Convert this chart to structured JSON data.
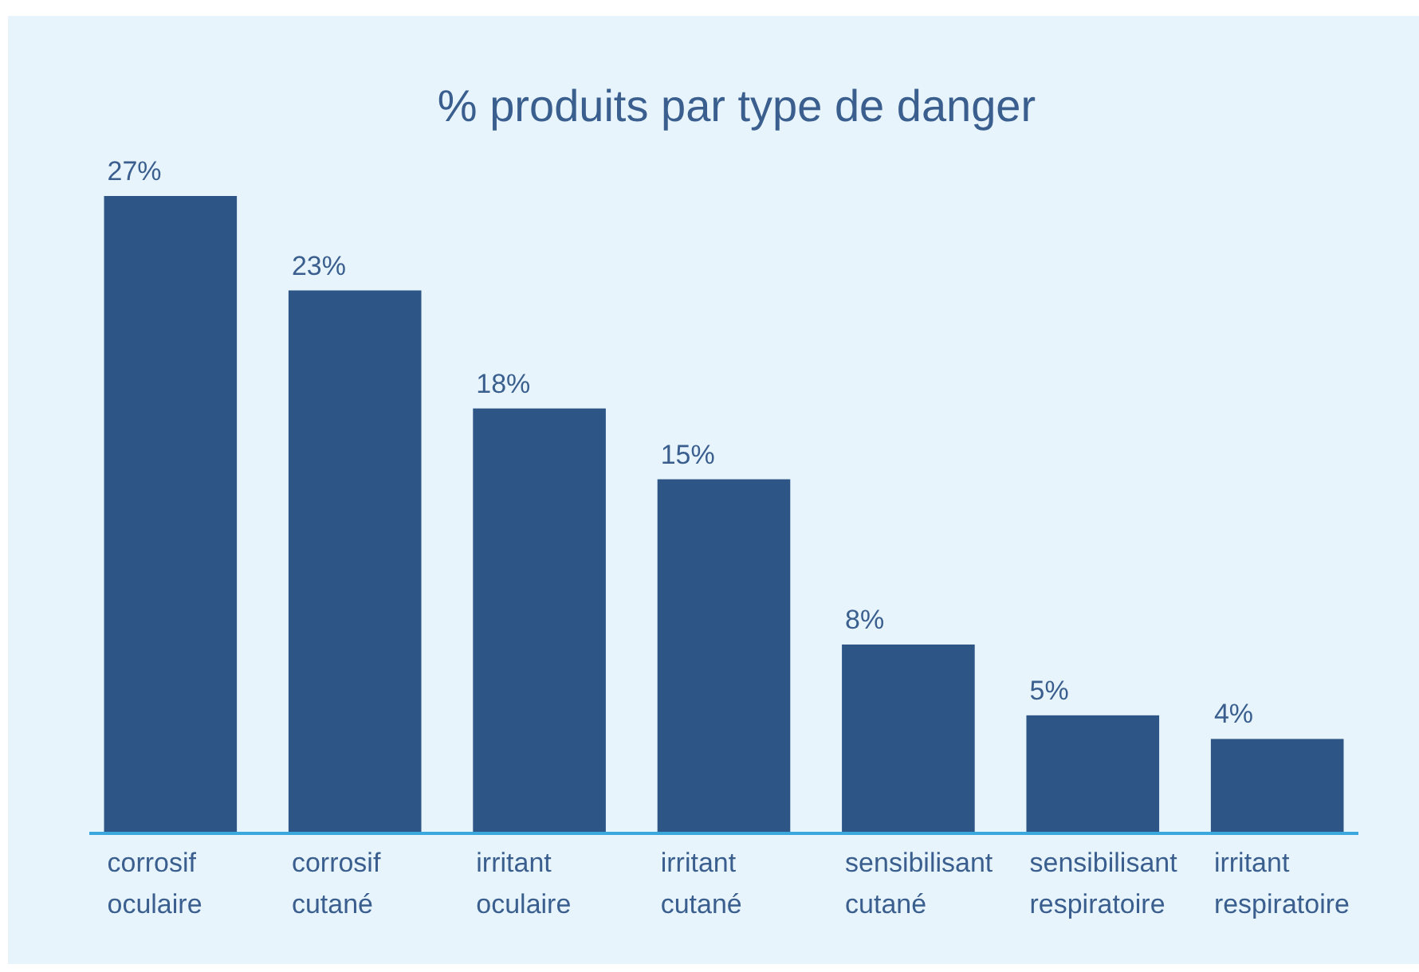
{
  "chart_data": {
    "type": "bar",
    "title": "% produits par type de danger",
    "categories": [
      "corrosif oculaire",
      "corrosif cutané",
      "irritant oculaire",
      "irritant cutané",
      "sensibilisant cutané",
      "sensibilisant respiratoire",
      "irritant respiratoire"
    ],
    "values": [
      27,
      23,
      18,
      15,
      8,
      5,
      4
    ],
    "value_labels": [
      "27%",
      "23%",
      "18%",
      "15%",
      "8%",
      "5%",
      "4%"
    ],
    "color": "#2d5686"
  }
}
